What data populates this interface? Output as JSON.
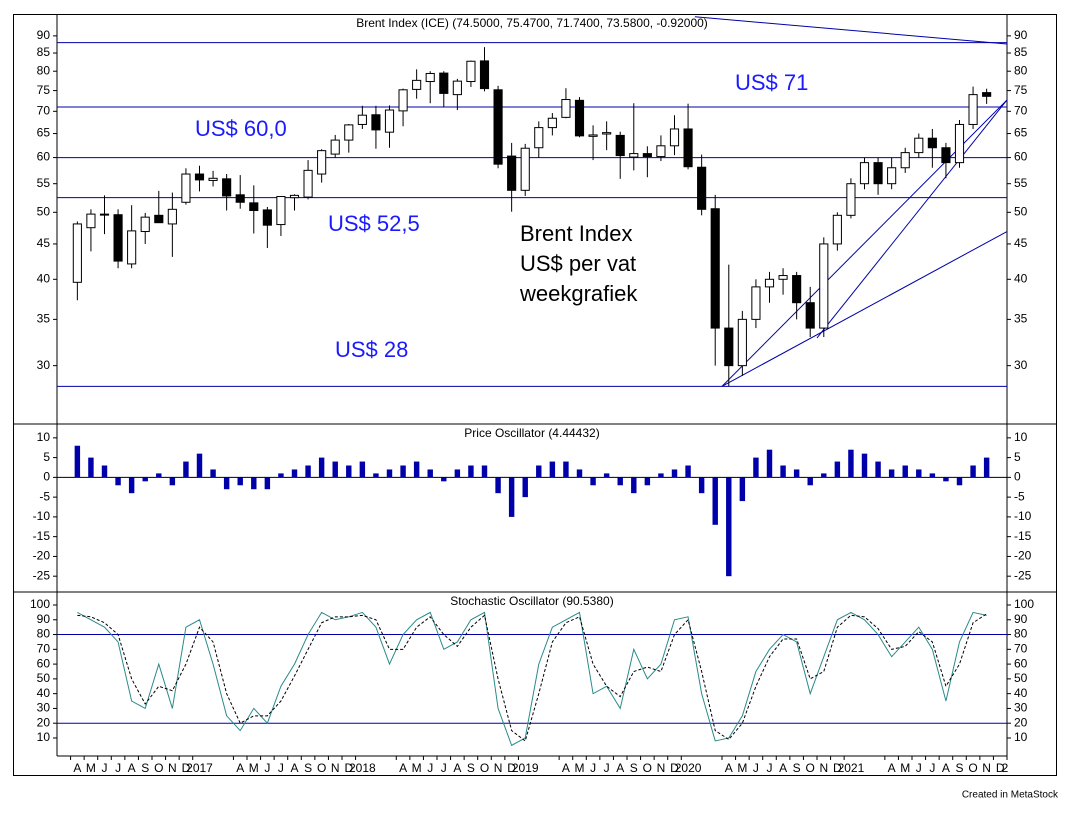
{
  "chart_data": [
    {
      "type": "candlestick",
      "title": "Brent Index (ICE) (74.5000, 75.4700, 71.7400, 73.5800, -0.92000)",
      "x": [
        "2016-04",
        "2016-05",
        "2016-06",
        "2016-07",
        "2016-08",
        "2016-09",
        "2016-10",
        "2016-11",
        "2016-12",
        "2017-01",
        "2017-02",
        "2017-03",
        "2017-04",
        "2017-05",
        "2017-06",
        "2017-07",
        "2017-08",
        "2017-09",
        "2017-10",
        "2017-11",
        "2017-12",
        "2018-01",
        "2018-02",
        "2018-03",
        "2018-04",
        "2018-05",
        "2018-06",
        "2018-07",
        "2018-08",
        "2018-09",
        "2018-10",
        "2018-11",
        "2018-12",
        "2019-01",
        "2019-02",
        "2019-03",
        "2019-04",
        "2019-05",
        "2019-06",
        "2019-07",
        "2019-08",
        "2019-09",
        "2019-10",
        "2019-11",
        "2019-12",
        "2020-01",
        "2020-02",
        "2020-03",
        "2020-04",
        "2020-05",
        "2020-06",
        "2020-07",
        "2020-08",
        "2020-09",
        "2020-10",
        "2020-11",
        "2020-12",
        "2021-01",
        "2021-02",
        "2021-03",
        "2021-04",
        "2021-05",
        "2021-06",
        "2021-07",
        "2021-08",
        "2021-09",
        "2021-10",
        "2021-11"
      ],
      "open": [
        39.6,
        47.5,
        49.7,
        49.6,
        42.1,
        46.9,
        49.5,
        48.1,
        51.7,
        56.8,
        55.6,
        55.9,
        53.0,
        51.6,
        50.4,
        48.0,
        52.5,
        52.6,
        56.8,
        60.7,
        63.6,
        67.0,
        69.2,
        65.3,
        70.1,
        75.3,
        77.3,
        79.5,
        74.0,
        77.3,
        82.8,
        75.2,
        60.3,
        53.8,
        62.0,
        66.3,
        68.6,
        72.6,
        64.4,
        64.9,
        64.6,
        60.1,
        60.8,
        60.2,
        62.4,
        66.0,
        58.1,
        50.6,
        34,
        30,
        35,
        39,
        40,
        40.5,
        37,
        34,
        45,
        49.5,
        55,
        59,
        55,
        58,
        61,
        64,
        62,
        59,
        67,
        74.5
      ],
      "high": [
        48.5,
        50.5,
        52.9,
        50.5,
        51.2,
        49.9,
        53.7,
        53.4,
        57.9,
        58.4,
        57.4,
        56.8,
        56.6,
        54.7,
        50.9,
        52.7,
        53.1,
        59.5,
        61.7,
        64.7,
        67.1,
        71.3,
        71.3,
        71.4,
        75.5,
        80.5,
        80.0,
        80.0,
        78.0,
        82.9,
        86.7,
        76.2,
        63.0,
        62.8,
        67.7,
        69.6,
        75.6,
        73.4,
        66.8,
        67.7,
        65.4,
        71.9,
        62.3,
        64.6,
        69.1,
        71.8,
        60.6,
        53.0,
        42,
        36,
        40,
        41,
        41.5,
        41,
        39,
        46,
        50,
        56,
        60,
        60,
        60,
        62,
        65,
        66,
        63,
        68,
        76,
        75.47
      ],
      "low": [
        37.3,
        43.9,
        46.5,
        41.5,
        41.5,
        45.0,
        48.5,
        43.1,
        51.3,
        53.6,
        54.5,
        50.3,
        50.6,
        46.6,
        44.4,
        46.2,
        50.3,
        52.2,
        55.2,
        60.0,
        61.0,
        66.0,
        61.8,
        62.0,
        66.6,
        73.0,
        71.9,
        70.9,
        70.3,
        75.9,
        74.8,
        57.9,
        50.1,
        52.8,
        60.0,
        64.6,
        68.4,
        64.2,
        59.5,
        61.5,
        55.9,
        57.5,
        56.2,
        59.3,
        60.5,
        57.7,
        49.5,
        30.0,
        28,
        29,
        34,
        37,
        38,
        35,
        33,
        33,
        44,
        49,
        54,
        53,
        54,
        57,
        60,
        58,
        56,
        58,
        66,
        71.74
      ],
      "close": [
        48.1,
        49.7,
        49.7,
        42.5,
        47.0,
        49.2,
        48.3,
        50.5,
        56.8,
        55.7,
        56.0,
        52.8,
        51.7,
        50.3,
        47.9,
        52.7,
        52.9,
        57.5,
        61.4,
        63.6,
        66.9,
        69.1,
        65.8,
        70.3,
        75.2,
        77.6,
        79.4,
        74.3,
        77.4,
        82.7,
        75.5,
        58.7,
        53.8,
        61.9,
        66.3,
        68.4,
        72.8,
        64.5,
        64.7,
        65.2,
        60.4,
        60.8,
        60.2,
        62.4,
        66.0,
        58.2,
        50.5,
        34.0,
        30,
        35,
        39,
        40,
        40.5,
        37,
        34,
        45,
        49.5,
        55,
        59,
        55,
        58,
        61,
        64,
        62,
        59,
        67,
        74,
        73.58
      ],
      "xlim": [
        "2016-03",
        "2022-01"
      ],
      "ylim": [
        24.7,
        96.8
      ],
      "log_scale": true,
      "yticks": [
        30,
        35,
        40,
        45,
        50,
        55,
        60,
        65,
        70,
        75,
        80,
        85,
        90
      ],
      "up_color": "#ffffff",
      "down_color": "#000000",
      "levels": [
        88,
        71,
        60,
        52.5,
        28
      ],
      "level_color": "#0000aa",
      "trendlines": [
        {
          "x": [
            "2020-04",
            "2022-01"
          ],
          "y": [
            28,
            72.7
          ]
        },
        {
          "x": [
            "2020-04",
            "2022-01"
          ],
          "y": [
            28,
            46.9
          ]
        },
        {
          "x": [
            "2020-11",
            "2022-01"
          ],
          "y": [
            32.9,
            72.7
          ]
        },
        {
          "x": [
            "2020-02",
            "2022-01"
          ],
          "y": [
            95.9,
            87.6
          ]
        }
      ],
      "annotations": [
        "US$ 60,0",
        "US$ 52,5",
        "US$ 28",
        "US$ 71"
      ],
      "note": [
        "Brent Index",
        "US$ per vat",
        "weekgrafiek"
      ]
    },
    {
      "type": "bar",
      "title": "Price Oscillator (4.44432)",
      "x": [
        "2016-04",
        "2016-05",
        "2016-06",
        "2016-07",
        "2016-08",
        "2016-09",
        "2016-10",
        "2016-11",
        "2016-12",
        "2017-01",
        "2017-02",
        "2017-03",
        "2017-04",
        "2017-05",
        "2017-06",
        "2017-07",
        "2017-08",
        "2017-09",
        "2017-10",
        "2017-11",
        "2017-12",
        "2018-01",
        "2018-02",
        "2018-03",
        "2018-04",
        "2018-05",
        "2018-06",
        "2018-07",
        "2018-08",
        "2018-09",
        "2018-10",
        "2018-11",
        "2018-12",
        "2019-01",
        "2019-02",
        "2019-03",
        "2019-04",
        "2019-05",
        "2019-06",
        "2019-07",
        "2019-08",
        "2019-09",
        "2019-10",
        "2019-11",
        "2019-12",
        "2020-01",
        "2020-02",
        "2020-03",
        "2020-04",
        "2020-05",
        "2020-06",
        "2020-07",
        "2020-08",
        "2020-09",
        "2020-10",
        "2020-11",
        "2020-12",
        "2021-01",
        "2021-02",
        "2021-03",
        "2021-04",
        "2021-05",
        "2021-06",
        "2021-07",
        "2021-08",
        "2021-09",
        "2021-10",
        "2021-11"
      ],
      "values": [
        8,
        5,
        3,
        -2,
        -4,
        -1,
        1,
        -2,
        4,
        6,
        2,
        -3,
        -2,
        -3,
        -3,
        1,
        2,
        3,
        5,
        4,
        3,
        4,
        1,
        2,
        3,
        4,
        2,
        -1,
        2,
        3,
        3,
        -4,
        -10,
        -5,
        3,
        4,
        4,
        2,
        -2,
        1,
        -2,
        -4,
        -2,
        1,
        2,
        3,
        -4,
        -12,
        -25,
        -6,
        5,
        7,
        3,
        2,
        -2,
        1,
        4,
        7,
        6,
        4,
        2,
        3,
        2,
        1,
        -1,
        -2,
        3,
        5
      ],
      "color": "#0000aa",
      "xlim": [
        "2016-03",
        "2022-01"
      ],
      "ylim": [
        -29,
        13.5
      ],
      "yticks": [
        10,
        5,
        0,
        -5,
        -10,
        -15,
        -20,
        -25
      ]
    },
    {
      "type": "line",
      "title": "Stochastic Oscillator (90.5380)",
      "x": [
        "2016-04",
        "2016-05",
        "2016-06",
        "2016-07",
        "2016-08",
        "2016-09",
        "2016-10",
        "2016-11",
        "2016-12",
        "2017-01",
        "2017-02",
        "2017-03",
        "2017-04",
        "2017-05",
        "2017-06",
        "2017-07",
        "2017-08",
        "2017-09",
        "2017-10",
        "2017-11",
        "2017-12",
        "2018-01",
        "2018-02",
        "2018-03",
        "2018-04",
        "2018-05",
        "2018-06",
        "2018-07",
        "2018-08",
        "2018-09",
        "2018-10",
        "2018-11",
        "2018-12",
        "2019-01",
        "2019-02",
        "2019-03",
        "2019-04",
        "2019-05",
        "2019-06",
        "2019-07",
        "2019-08",
        "2019-09",
        "2019-10",
        "2019-11",
        "2019-12",
        "2020-01",
        "2020-02",
        "2020-03",
        "2020-04",
        "2020-05",
        "2020-06",
        "2020-07",
        "2020-08",
        "2020-09",
        "2020-10",
        "2020-11",
        "2020-12",
        "2021-01",
        "2021-02",
        "2021-03",
        "2021-04",
        "2021-05",
        "2021-06",
        "2021-07",
        "2021-08",
        "2021-09",
        "2021-10",
        "2021-11"
      ],
      "series": [
        {
          "color": "#2a8a8a",
          "dashed": false,
          "values": [
            95,
            90,
            85,
            75,
            35,
            30,
            60,
            30,
            85,
            90,
            60,
            25,
            15,
            30,
            20,
            45,
            60,
            80,
            95,
            90,
            92,
            95,
            85,
            60,
            80,
            90,
            95,
            70,
            75,
            90,
            95,
            30,
            5,
            10,
            60,
            85,
            90,
            95,
            40,
            45,
            30,
            70,
            50,
            60,
            90,
            92,
            40,
            8,
            10,
            25,
            55,
            70,
            80,
            75,
            40,
            65,
            90,
            95,
            90,
            80,
            65,
            75,
            85,
            70,
            35,
            75,
            95,
            93
          ]
        },
        {
          "color": "#000000",
          "dashed": true,
          "values": [
            93,
            92,
            88,
            80,
            50,
            33,
            45,
            42,
            60,
            85,
            75,
            40,
            20,
            25,
            25,
            35,
            52,
            70,
            88,
            92,
            92,
            93,
            90,
            70,
            70,
            85,
            92,
            80,
            72,
            85,
            93,
            50,
            15,
            8,
            40,
            75,
            88,
            92,
            60,
            45,
            38,
            55,
            58,
            55,
            80,
            90,
            55,
            15,
            9,
            20,
            45,
            65,
            77,
            77,
            50,
            55,
            85,
            93,
            92,
            84,
            70,
            72,
            82,
            75,
            45,
            60,
            88,
            94
          ]
        }
      ],
      "xlim": [
        "2016-03",
        "2022-01"
      ],
      "ylim": [
        -2.2,
        108.8
      ],
      "yticks": [
        10,
        20,
        30,
        40,
        50,
        60,
        70,
        80,
        90,
        100
      ],
      "levels": [
        80,
        20
      ],
      "level_color": "#0000aa",
      "xticks": [
        {
          "value": "2016-04",
          "label": "A"
        },
        {
          "value": "2016-05",
          "label": "M"
        },
        {
          "value": "2016-06",
          "label": "J"
        },
        {
          "value": "2016-07",
          "label": "J"
        },
        {
          "value": "2016-08",
          "label": "A"
        },
        {
          "value": "2016-09",
          "label": "S"
        },
        {
          "value": "2016-10",
          "label": "O"
        },
        {
          "value": "2016-11",
          "label": "N"
        },
        {
          "value": "2016-12",
          "label": "D"
        },
        {
          "value": "2017-01",
          "label": "2017"
        },
        {
          "value": "2017-04",
          "label": "A"
        },
        {
          "value": "2017-05",
          "label": "M"
        },
        {
          "value": "2017-06",
          "label": "J"
        },
        {
          "value": "2017-07",
          "label": "J"
        },
        {
          "value": "2017-08",
          "label": "A"
        },
        {
          "value": "2017-09",
          "label": "S"
        },
        {
          "value": "2017-10",
          "label": "O"
        },
        {
          "value": "2017-11",
          "label": "N"
        },
        {
          "value": "2017-12",
          "label": "D"
        },
        {
          "value": "2018-01",
          "label": "2018"
        },
        {
          "value": "2018-04",
          "label": "A"
        },
        {
          "value": "2018-05",
          "label": "M"
        },
        {
          "value": "2018-06",
          "label": "J"
        },
        {
          "value": "2018-07",
          "label": "J"
        },
        {
          "value": "2018-08",
          "label": "A"
        },
        {
          "value": "2018-09",
          "label": "S"
        },
        {
          "value": "2018-10",
          "label": "O"
        },
        {
          "value": "2018-11",
          "label": "N"
        },
        {
          "value": "2018-12",
          "label": "D"
        },
        {
          "value": "2019-01",
          "label": "2019"
        },
        {
          "value": "2019-04",
          "label": "A"
        },
        {
          "value": "2019-05",
          "label": "M"
        },
        {
          "value": "2019-06",
          "label": "J"
        },
        {
          "value": "2019-07",
          "label": "J"
        },
        {
          "value": "2019-08",
          "label": "A"
        },
        {
          "value": "2019-09",
          "label": "S"
        },
        {
          "value": "2019-10",
          "label": "O"
        },
        {
          "value": "2019-11",
          "label": "N"
        },
        {
          "value": "2019-12",
          "label": "D"
        },
        {
          "value": "2020-01",
          "label": "2020"
        },
        {
          "value": "2020-04",
          "label": "A"
        },
        {
          "value": "2020-05",
          "label": "M"
        },
        {
          "value": "2020-06",
          "label": "J"
        },
        {
          "value": "2020-07",
          "label": "J"
        },
        {
          "value": "2020-08",
          "label": "A"
        },
        {
          "value": "2020-09",
          "label": "S"
        },
        {
          "value": "2020-10",
          "label": "O"
        },
        {
          "value": "2020-11",
          "label": "N"
        },
        {
          "value": "2020-12",
          "label": "D"
        },
        {
          "value": "2021-01",
          "label": "2021"
        },
        {
          "value": "2021-04",
          "label": "A"
        },
        {
          "value": "2021-05",
          "label": "M"
        },
        {
          "value": "2021-06",
          "label": "J"
        },
        {
          "value": "2021-07",
          "label": "J"
        },
        {
          "value": "2021-08",
          "label": "A"
        },
        {
          "value": "2021-09",
          "label": "S"
        },
        {
          "value": "2021-10",
          "label": "O"
        },
        {
          "value": "2021-11",
          "label": "N"
        },
        {
          "value": "2021-12",
          "label": "D"
        },
        {
          "value": "2022-01",
          "label": "2"
        }
      ]
    }
  ],
  "footer": "Created in MetaStock"
}
